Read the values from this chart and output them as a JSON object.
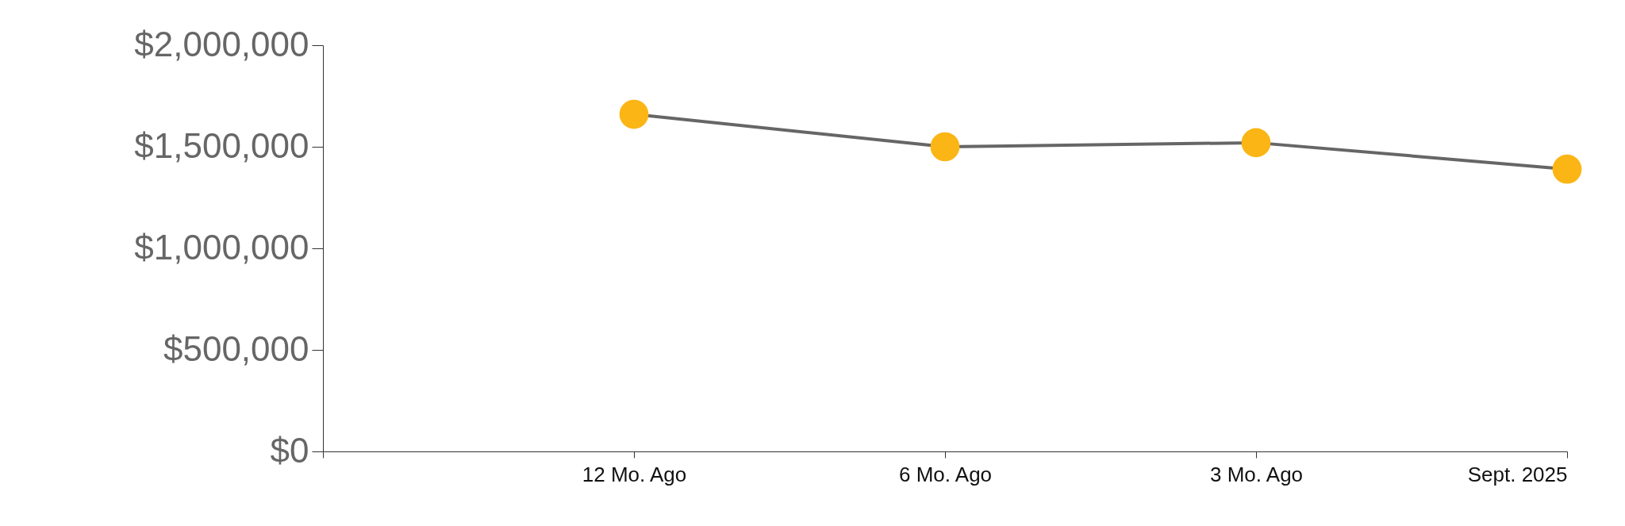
{
  "chart_data": {
    "type": "line",
    "categories": [
      null,
      "12 Mo. Ago",
      "6 Mo. Ago",
      "3 Mo. Ago",
      "Sept. 2025"
    ],
    "series": [
      {
        "color": "#666666",
        "colors": [
          "#fbb515",
          "#fbb515",
          "#fbb515",
          "#fbb515",
          "#fbb515"
        ],
        "values": [
          null,
          1660000,
          1500000,
          1520000,
          1390000
        ]
      }
    ],
    "marker": "circle",
    "ylim": [
      0,
      2000000
    ],
    "yticks": [
      {
        "value": 0,
        "label": "$0"
      },
      {
        "value": 500000,
        "label": "$500,000"
      },
      {
        "value": 1000000,
        "label": "$1,000,000"
      },
      {
        "value": 1500000,
        "label": "$1,500,000"
      },
      {
        "value": 2000000,
        "label": "$2,000,000"
      }
    ],
    "grid": false
  }
}
